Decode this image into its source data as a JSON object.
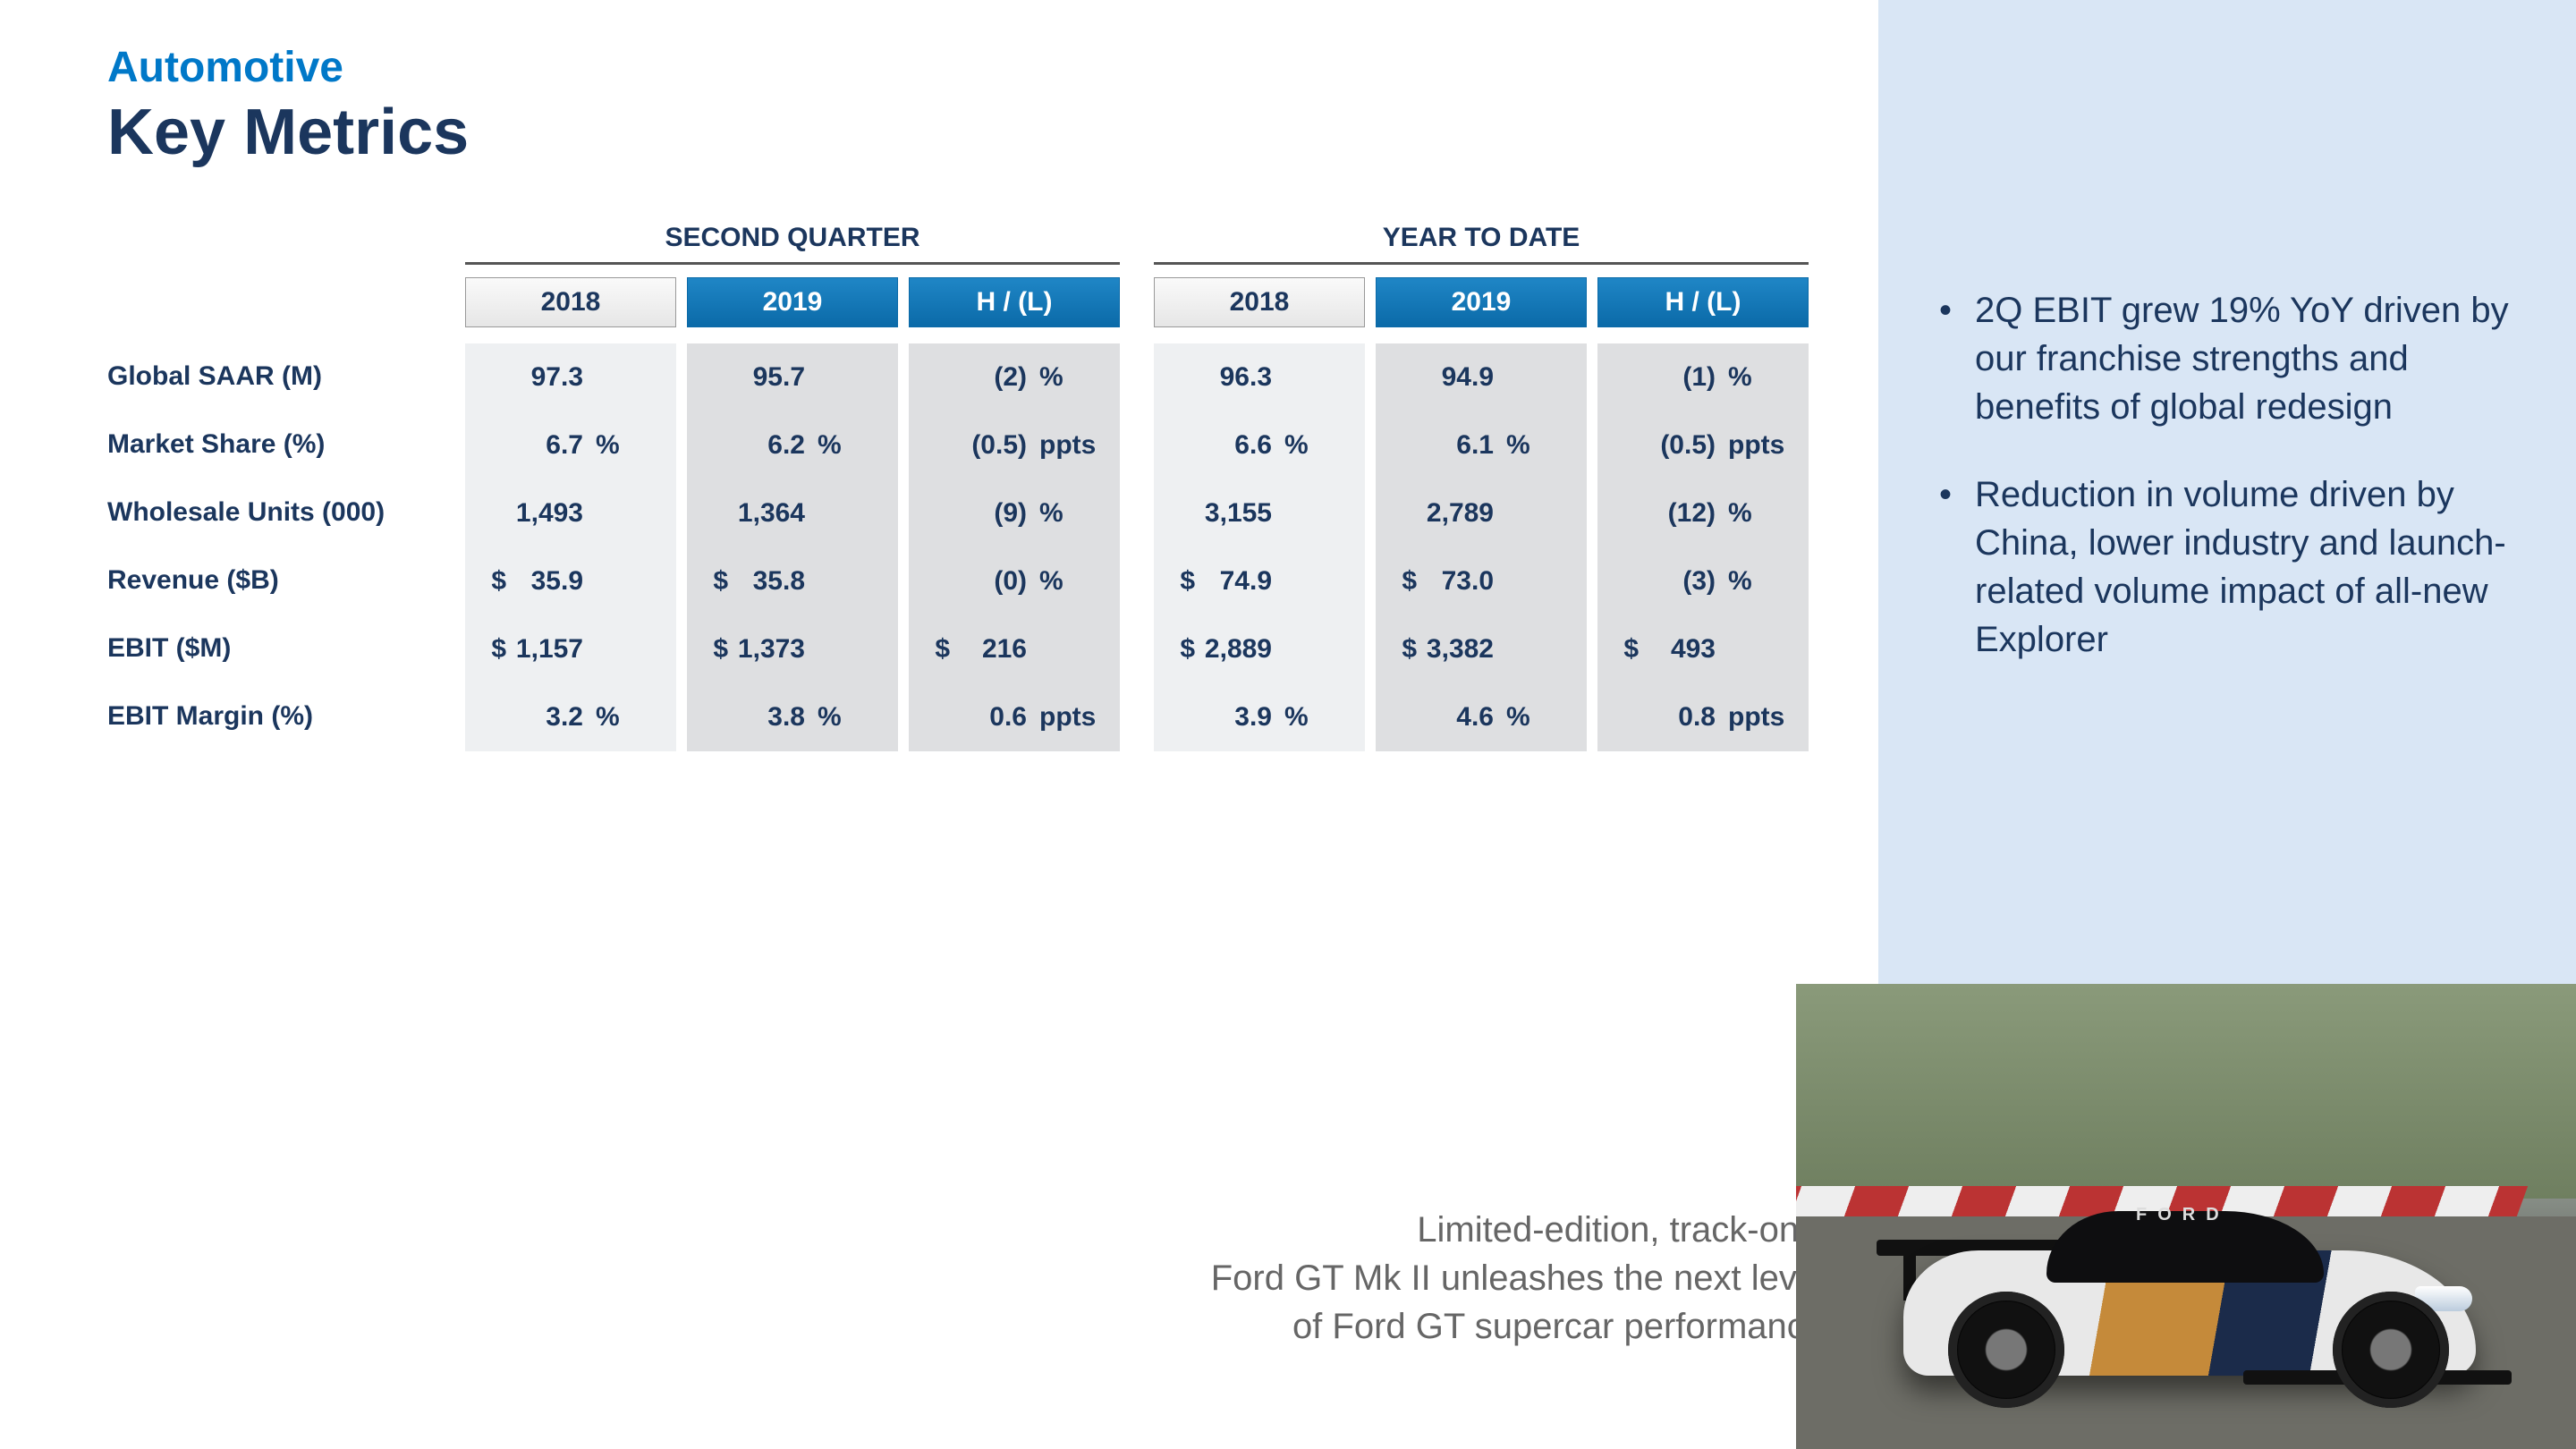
{
  "header": {
    "pretitle": "Automotive",
    "title": "Key Metrics"
  },
  "row_labels": [
    "Global SAAR (M)",
    "Market Share (%)",
    "Wholesale Units (000)",
    "Revenue ($B)",
    "EBIT ($M)",
    "EBIT Margin (%)"
  ],
  "sections": [
    {
      "title": "SECOND QUARTER",
      "columns": [
        "2018",
        "2019",
        "H / (L)"
      ],
      "rows": [
        [
          {
            "pre": "",
            "num": "97.3",
            "suf": ""
          },
          {
            "pre": "",
            "num": "95.7",
            "suf": ""
          },
          {
            "pre": "",
            "num": "(2)",
            "suf": "%"
          }
        ],
        [
          {
            "pre": "",
            "num": "6.7",
            "suf": "%"
          },
          {
            "pre": "",
            "num": "6.2",
            "suf": "%"
          },
          {
            "pre": "",
            "num": "(0.5)",
            "suf": "ppts"
          }
        ],
        [
          {
            "pre": "",
            "num": "1,493",
            "suf": ""
          },
          {
            "pre": "",
            "num": "1,364",
            "suf": ""
          },
          {
            "pre": "",
            "num": "(9)",
            "suf": "%"
          }
        ],
        [
          {
            "pre": "$",
            "num": "35.9",
            "suf": ""
          },
          {
            "pre": "$",
            "num": "35.8",
            "suf": ""
          },
          {
            "pre": "",
            "num": "(0)",
            "suf": "%"
          }
        ],
        [
          {
            "pre": "$",
            "num": "1,157",
            "suf": ""
          },
          {
            "pre": "$",
            "num": "1,373",
            "suf": ""
          },
          {
            "pre": "$",
            "num": "216",
            "suf": ""
          }
        ],
        [
          {
            "pre": "",
            "num": "3.2",
            "suf": "%"
          },
          {
            "pre": "",
            "num": "3.8",
            "suf": "%"
          },
          {
            "pre": "",
            "num": "0.6",
            "suf": "ppts"
          }
        ]
      ]
    },
    {
      "title": "YEAR TO DATE",
      "columns": [
        "2018",
        "2019",
        "H / (L)"
      ],
      "rows": [
        [
          {
            "pre": "",
            "num": "96.3",
            "suf": ""
          },
          {
            "pre": "",
            "num": "94.9",
            "suf": ""
          },
          {
            "pre": "",
            "num": "(1)",
            "suf": "%"
          }
        ],
        [
          {
            "pre": "",
            "num": "6.6",
            "suf": "%"
          },
          {
            "pre": "",
            "num": "6.1",
            "suf": "%"
          },
          {
            "pre": "",
            "num": "(0.5)",
            "suf": "ppts"
          }
        ],
        [
          {
            "pre": "",
            "num": "3,155",
            "suf": ""
          },
          {
            "pre": "",
            "num": "2,789",
            "suf": ""
          },
          {
            "pre": "",
            "num": "(12)",
            "suf": "%"
          }
        ],
        [
          {
            "pre": "$",
            "num": "74.9",
            "suf": ""
          },
          {
            "pre": "$",
            "num": "73.0",
            "suf": ""
          },
          {
            "pre": "",
            "num": "(3)",
            "suf": "%"
          }
        ],
        [
          {
            "pre": "$",
            "num": "2,889",
            "suf": ""
          },
          {
            "pre": "$",
            "num": "3,382",
            "suf": ""
          },
          {
            "pre": "$",
            "num": "493",
            "suf": ""
          }
        ],
        [
          {
            "pre": "",
            "num": "3.9",
            "suf": "%"
          },
          {
            "pre": "",
            "num": "4.6",
            "suf": "%"
          },
          {
            "pre": "",
            "num": "0.8",
            "suf": "ppts"
          }
        ]
      ]
    }
  ],
  "bullets": [
    "2Q EBIT grew 19% YoY driven by our franchise strengths and benefits of global redesign",
    "Reduction in volume driven by China, lower industry and launch-related volume impact of all-new Explorer"
  ],
  "caption": "Limited-edition, track-only\nFord GT Mk II unleashes the next level\nof Ford GT supercar performance",
  "car_label": "FORD",
  "colors": {
    "brand_blue": "#0078c8",
    "navy": "#1b365d",
    "sidebar_bg": "#d9e6f5",
    "header_blue_top": "#1f86c6",
    "header_blue_bot": "#0b6aa8",
    "col_bg_light": "#eef0f2",
    "col_bg_dark": "#dedfe1"
  }
}
